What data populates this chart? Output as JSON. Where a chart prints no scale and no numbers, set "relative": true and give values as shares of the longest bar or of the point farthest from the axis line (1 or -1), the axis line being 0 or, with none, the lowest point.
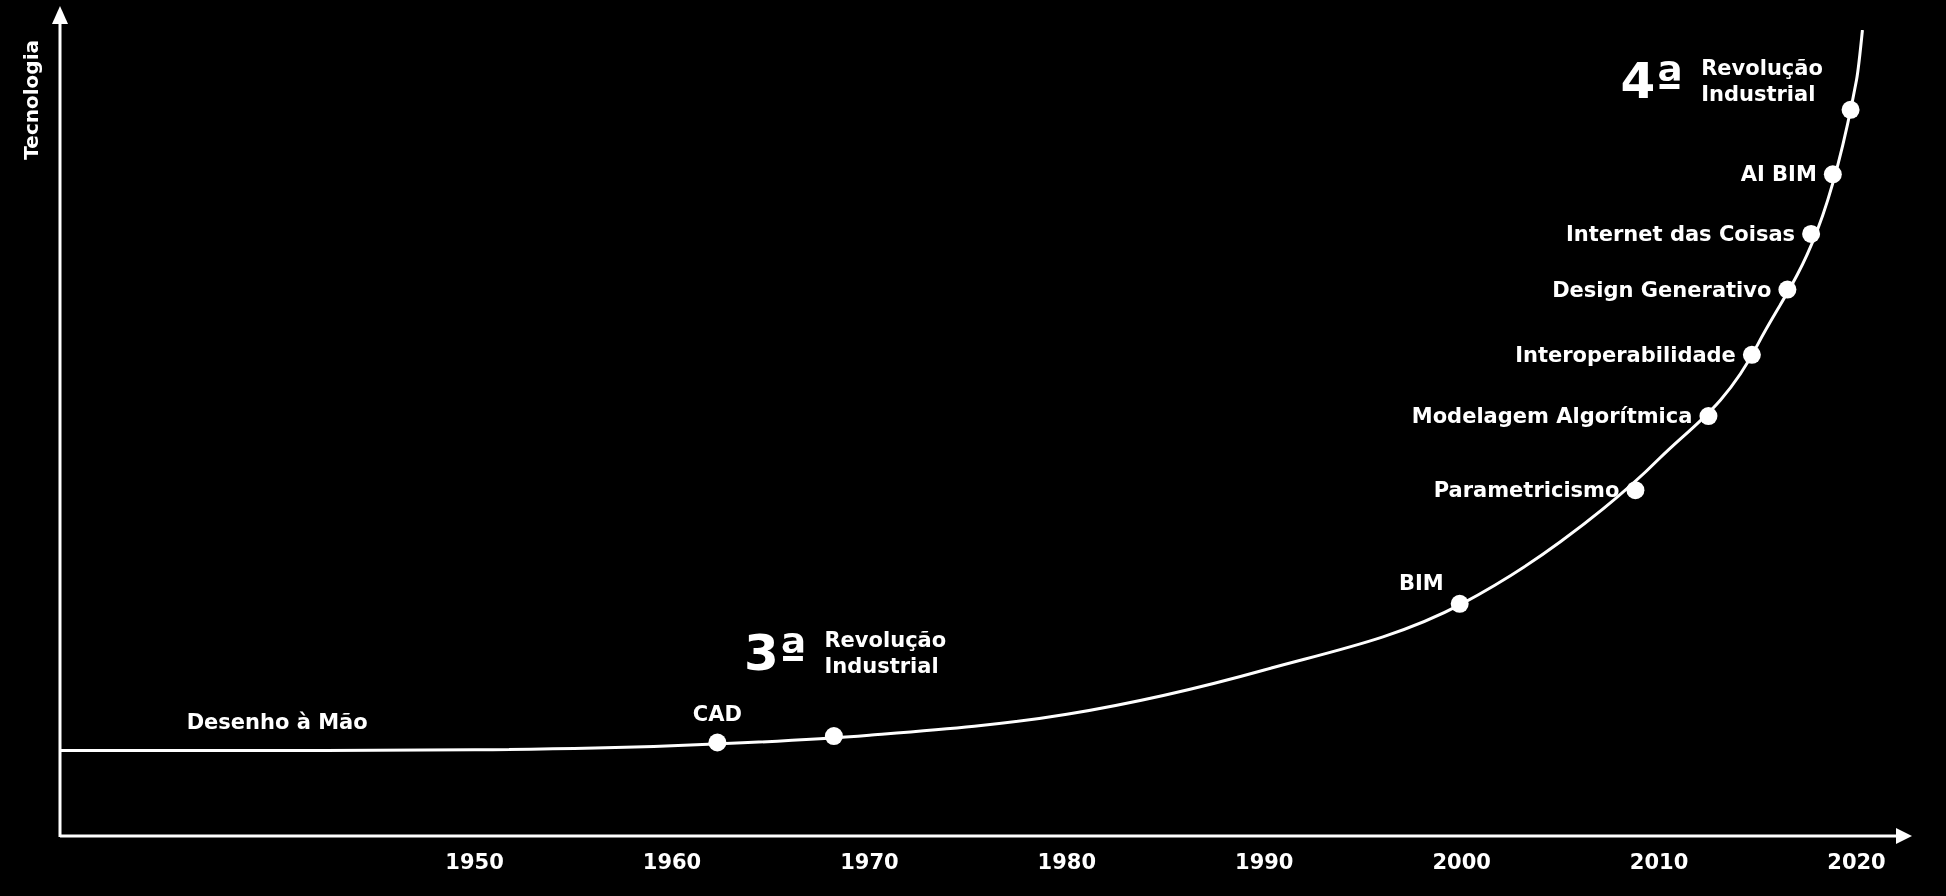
{
  "chart_data": {
    "type": "line",
    "relative": true,
    "ylabel": "Tecnologia",
    "xlim": [
      1929,
      2022
    ],
    "xticks": [
      1950,
      1960,
      1970,
      1980,
      1990,
      2000,
      2010,
      2020
    ],
    "series": [
      {
        "color": "#ffffff",
        "marker": "none",
        "x": [
          1929,
          1940,
          1950,
          1960,
          1970,
          1980,
          1990,
          2000,
          2005,
          2010,
          2015,
          2020,
          2020.3
        ],
        "values": [
          0.106,
          0.106,
          0.107,
          0.112,
          0.125,
          0.151,
          0.206,
          0.288,
          0.365,
          0.468,
          0.61,
          0.938,
          1.0
        ]
      },
      {
        "type": "scatter",
        "color": "#ffffff",
        "marker": "circle",
        "x": [
          1962.3,
          1968.2,
          1999.9,
          2008.8,
          2012.5,
          2014.7,
          2016.5,
          2017.7,
          2018.8,
          2019.7
        ],
        "values": [
          0.116,
          0.124,
          0.288,
          0.429,
          0.521,
          0.597,
          0.678,
          0.747,
          0.821,
          0.901
        ]
      }
    ],
    "annotations": [
      {
        "text": "Desenho à Mão",
        "x": 1940,
        "y": 0.106
      },
      {
        "text": "CAD",
        "x": 1962.3,
        "y": 0.116
      },
      {
        "text": "3ª Revolução Industrial",
        "x": 1968.2,
        "y": 0.124
      },
      {
        "text": "BIM",
        "x": 1999.9,
        "y": 0.288
      },
      {
        "text": "Parametricismo",
        "x": 2008.8,
        "y": 0.429
      },
      {
        "text": "Modelagem Algorítmica",
        "x": 2012.5,
        "y": 0.521
      },
      {
        "text": "Interoperabilidade",
        "x": 2014.7,
        "y": 0.597
      },
      {
        "text": "Design Generativo",
        "x": 2016.5,
        "y": 0.678
      },
      {
        "text": "Internet das Coisas",
        "x": 2017.7,
        "y": 0.747
      },
      {
        "text": "AI BIM",
        "x": 2018.8,
        "y": 0.821
      },
      {
        "text": "4ª Revolução Industrial",
        "x": 2019.7,
        "y": 0.901
      }
    ]
  }
}
